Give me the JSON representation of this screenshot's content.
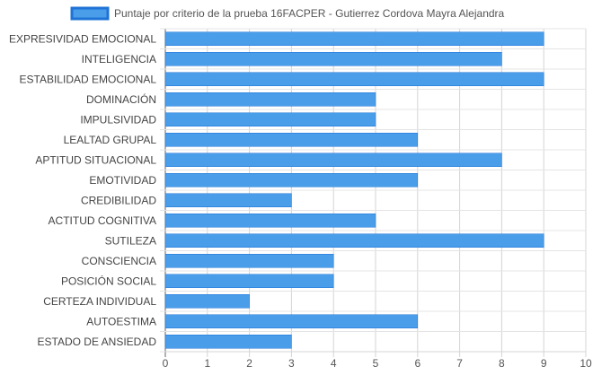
{
  "chart_data": {
    "type": "bar",
    "orientation": "horizontal",
    "title": "",
    "xlabel": "",
    "ylabel": "",
    "xlim": [
      0,
      10
    ],
    "x_ticks": [
      0,
      1,
      2,
      3,
      4,
      5,
      6,
      7,
      8,
      9,
      10
    ],
    "grid": true,
    "legend_position": "top",
    "series": [
      {
        "name": "Puntaje por criterio de la prueba 16FACPER - Gutierrez Cordova Mayra Alejandra",
        "color": "#4a9de9",
        "border_color": "#1f73d6",
        "values": [
          9,
          8,
          9,
          5,
          5,
          6,
          8,
          6,
          3,
          5,
          9,
          4,
          4,
          2,
          6,
          3
        ]
      }
    ],
    "categories": [
      "EXPRESIVIDAD EMOCIONAL",
      "INTELIGENCIA",
      "ESTABILIDAD EMOCIONAL",
      "DOMINACIÓN",
      "IMPULSIVIDAD",
      "LEALTAD GRUPAL",
      "APTITUD SITUACIONAL",
      "EMOTIVIDAD",
      "CREDIBILIDAD",
      "ACTITUD COGNITIVA",
      "SUTILEZA",
      "CONSCIENCIA",
      "POSICIÓN SOCIAL",
      "CERTEZA INDIVIDUAL",
      "AUTOESTIMA",
      "ESTADO DE ANSIEDAD"
    ]
  }
}
